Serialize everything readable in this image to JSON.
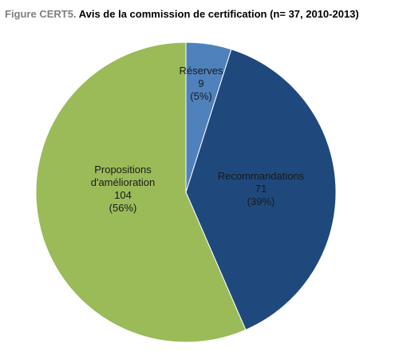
{
  "figure": {
    "prefix": "Figure CERT5.",
    "title": "Avis de la commission de certification (n= 37, 2010-2013)"
  },
  "chart_data": {
    "type": "pie",
    "title": "Avis de la commission de certification (n= 37, 2010-2013)",
    "slices": [
      {
        "label_lines": [
          "Réserves"
        ],
        "value": 9,
        "percent": "(5%)",
        "color": "#4f81bd"
      },
      {
        "label_lines": [
          "Recommandations"
        ],
        "value": 71,
        "percent": "(39%)",
        "color": "#1f497d"
      },
      {
        "label_lines": [
          "Propositions",
          "d'amélioration"
        ],
        "value": 104,
        "percent": "(56%)",
        "color": "#9bbb59"
      }
    ],
    "start_angle_deg": 0,
    "direction": "clockwise"
  }
}
